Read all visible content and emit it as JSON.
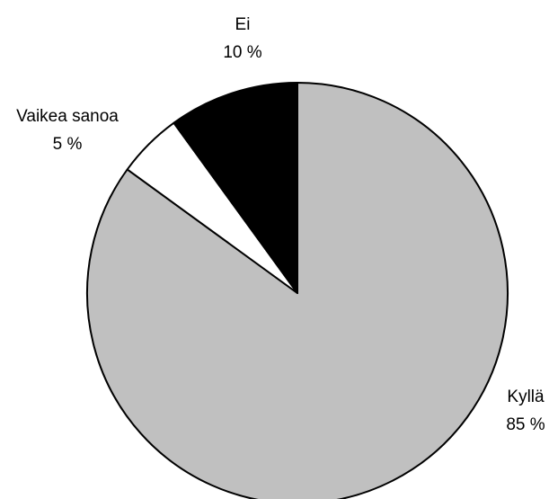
{
  "chart_data": {
    "type": "pie",
    "categories": [
      "Kyllä",
      "Vaikea sanoa",
      "Ei"
    ],
    "values": [
      85,
      5,
      10
    ],
    "value_labels": [
      "85 %",
      "5 %",
      "10 %"
    ],
    "colors": [
      "#c0c0c0",
      "#ffffff",
      "#000000"
    ]
  }
}
